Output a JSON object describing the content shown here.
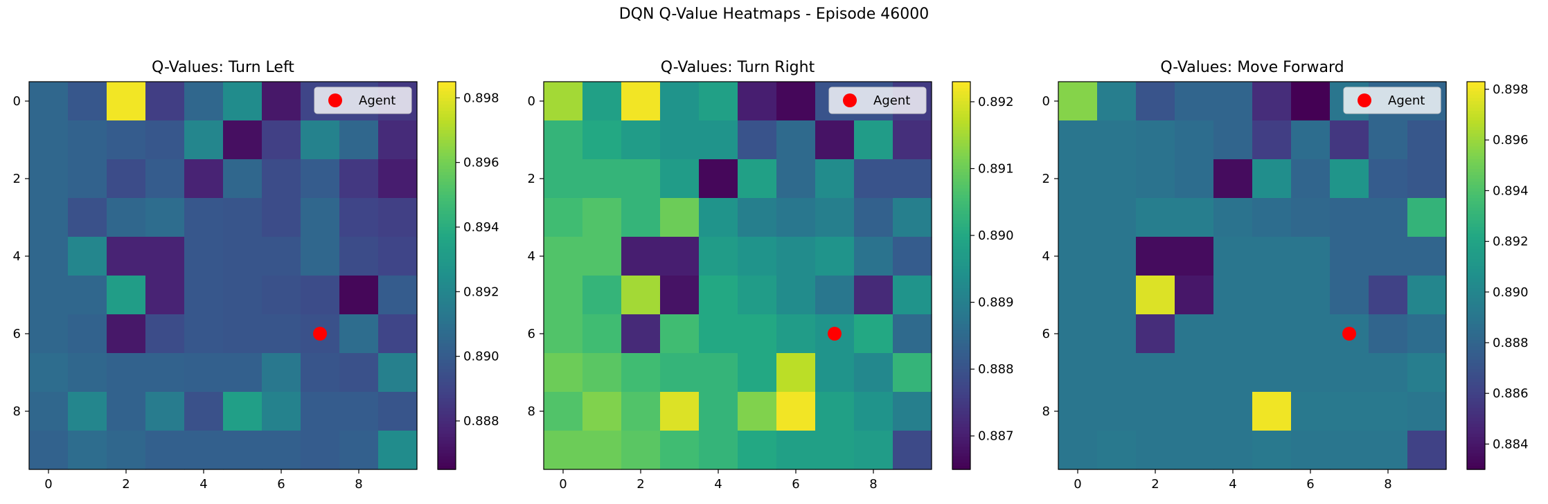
{
  "figure": {
    "title": "DQN Q-Value Heatmaps - Episode 46000"
  },
  "chart_data": [
    {
      "type": "heatmap",
      "title": "Q-Values: Turn Left",
      "colormap": "viridis",
      "vmin": 0.8865,
      "vmax": 0.8985,
      "x_ticks": [
        "0",
        "2",
        "4",
        "6",
        "8"
      ],
      "y_ticks": [
        "0",
        "2",
        "4",
        "6",
        "8"
      ],
      "colorbar_ticks": [
        "0.888",
        "0.890",
        "0.892",
        "0.894",
        "0.896",
        "0.898"
      ],
      "colorbar_tick_values": [
        0.888,
        0.89,
        0.892,
        0.894,
        0.896,
        0.898
      ],
      "legend": {
        "label": "Agent",
        "placement": "upper right",
        "marker_color": "#ff0000"
      },
      "agent": {
        "x": 7,
        "y": 6
      },
      "grid": [
        [
          0.8905,
          0.8898,
          0.8983,
          0.8887,
          0.8905,
          0.8923,
          0.8873,
          0.889,
          0.889,
          0.8885
        ],
        [
          0.8905,
          0.8903,
          0.89,
          0.8898,
          0.892,
          0.887,
          0.8888,
          0.8918,
          0.8905,
          0.888
        ],
        [
          0.8905,
          0.8903,
          0.8893,
          0.89,
          0.8877,
          0.8905,
          0.8893,
          0.89,
          0.8885,
          0.8875
        ],
        [
          0.8905,
          0.8895,
          0.8905,
          0.8908,
          0.8898,
          0.8897,
          0.8893,
          0.8905,
          0.889,
          0.8888
        ],
        [
          0.8905,
          0.892,
          0.8877,
          0.8877,
          0.8898,
          0.8897,
          0.8897,
          0.8905,
          0.8893,
          0.889
        ],
        [
          0.8905,
          0.8905,
          0.8932,
          0.8877,
          0.8898,
          0.8897,
          0.8895,
          0.8893,
          0.8867,
          0.89
        ],
        [
          0.8905,
          0.8903,
          0.8873,
          0.8893,
          0.8898,
          0.8897,
          0.8897,
          0.8895,
          0.8908,
          0.889
        ],
        [
          0.8908,
          0.8905,
          0.8903,
          0.8903,
          0.8902,
          0.8902,
          0.8913,
          0.8897,
          0.8895,
          0.8917
        ],
        [
          0.8905,
          0.892,
          0.8903,
          0.8915,
          0.8895,
          0.8933,
          0.8918,
          0.89,
          0.89,
          0.8897
        ],
        [
          0.8903,
          0.8908,
          0.8905,
          0.8902,
          0.8902,
          0.8902,
          0.8902,
          0.89,
          0.8902,
          0.8923
        ]
      ]
    },
    {
      "type": "heatmap",
      "title": "Q-Values: Turn Right",
      "colormap": "viridis",
      "vmin": 0.8865,
      "vmax": 0.8923,
      "x_ticks": [
        "0",
        "2",
        "4",
        "6",
        "8"
      ],
      "y_ticks": [
        "0",
        "2",
        "4",
        "6",
        "8"
      ],
      "colorbar_ticks": [
        "0.887",
        "0.888",
        "0.889",
        "0.890",
        "0.891",
        "0.892"
      ],
      "colorbar_tick_values": [
        0.887,
        0.888,
        0.889,
        0.89,
        0.891,
        0.892
      ],
      "legend": {
        "label": "Agent",
        "placement": "upper right",
        "marker_color": "#ff0000"
      },
      "agent": {
        "x": 7,
        "y": 6
      },
      "grid": [
        [
          0.8915,
          0.8898,
          0.8922,
          0.8895,
          0.8898,
          0.887,
          0.8866,
          0.888,
          0.888,
          0.8875
        ],
        [
          0.8903,
          0.89,
          0.8897,
          0.8895,
          0.8895,
          0.888,
          0.8885,
          0.8868,
          0.8897,
          0.8873
        ],
        [
          0.8903,
          0.8903,
          0.8903,
          0.8897,
          0.8866,
          0.8898,
          0.8885,
          0.8893,
          0.888,
          0.888
        ],
        [
          0.8905,
          0.8907,
          0.8903,
          0.891,
          0.8895,
          0.889,
          0.8888,
          0.889,
          0.8883,
          0.889
        ],
        [
          0.8907,
          0.8907,
          0.887,
          0.887,
          0.8897,
          0.8895,
          0.8893,
          0.8895,
          0.8887,
          0.8882
        ],
        [
          0.8907,
          0.8903,
          0.8915,
          0.8868,
          0.89,
          0.8897,
          0.8893,
          0.8888,
          0.8872,
          0.8895
        ],
        [
          0.8907,
          0.8905,
          0.8872,
          0.8905,
          0.89,
          0.89,
          0.8897,
          0.8895,
          0.89,
          0.8885
        ],
        [
          0.891,
          0.8908,
          0.8905,
          0.8903,
          0.8903,
          0.89,
          0.8917,
          0.8895,
          0.8892,
          0.8903
        ],
        [
          0.8907,
          0.8912,
          0.8907,
          0.892,
          0.8903,
          0.8912,
          0.8922,
          0.8898,
          0.8895,
          0.889
        ],
        [
          0.891,
          0.891,
          0.8908,
          0.8905,
          0.8903,
          0.89,
          0.8898,
          0.8898,
          0.8897,
          0.8878
        ]
      ]
    },
    {
      "type": "heatmap",
      "title": "Q-Values: Move Forward",
      "colormap": "viridis",
      "vmin": 0.883,
      "vmax": 0.8983,
      "x_ticks": [
        "0",
        "2",
        "4",
        "6",
        "8"
      ],
      "y_ticks": [
        "0",
        "2",
        "4",
        "6",
        "8"
      ],
      "colorbar_ticks": [
        "0.884",
        "0.886",
        "0.888",
        "0.890",
        "0.892",
        "0.894",
        "0.896",
        "0.898"
      ],
      "colorbar_tick_values": [
        0.884,
        0.886,
        0.888,
        0.89,
        0.892,
        0.894,
        0.896,
        0.898
      ],
      "legend": {
        "label": "Agent",
        "placement": "upper right",
        "marker_color": "#ff0000"
      },
      "agent": {
        "x": 7,
        "y": 6
      },
      "grid": [
        [
          0.8955,
          0.8895,
          0.887,
          0.888,
          0.888,
          0.885,
          0.883,
          0.889,
          0.888,
          0.888
        ],
        [
          0.889,
          0.889,
          0.8888,
          0.8885,
          0.888,
          0.8858,
          0.8885,
          0.8855,
          0.888,
          0.8872
        ],
        [
          0.889,
          0.889,
          0.8888,
          0.8885,
          0.8835,
          0.8905,
          0.888,
          0.891,
          0.8875,
          0.8872
        ],
        [
          0.889,
          0.889,
          0.8895,
          0.8895,
          0.8888,
          0.8885,
          0.8882,
          0.888,
          0.888,
          0.893
        ],
        [
          0.889,
          0.889,
          0.8835,
          0.8835,
          0.889,
          0.889,
          0.889,
          0.888,
          0.888,
          0.888
        ],
        [
          0.889,
          0.889,
          0.8975,
          0.884,
          0.889,
          0.889,
          0.889,
          0.888,
          0.886,
          0.89
        ],
        [
          0.889,
          0.889,
          0.885,
          0.889,
          0.889,
          0.889,
          0.889,
          0.889,
          0.888,
          0.8885
        ],
        [
          0.889,
          0.889,
          0.889,
          0.889,
          0.889,
          0.889,
          0.889,
          0.889,
          0.889,
          0.8895
        ],
        [
          0.889,
          0.889,
          0.889,
          0.889,
          0.889,
          0.898,
          0.8892,
          0.8892,
          0.8892,
          0.889
        ],
        [
          0.889,
          0.8892,
          0.889,
          0.889,
          0.889,
          0.8892,
          0.889,
          0.889,
          0.889,
          0.886
        ]
      ]
    }
  ]
}
